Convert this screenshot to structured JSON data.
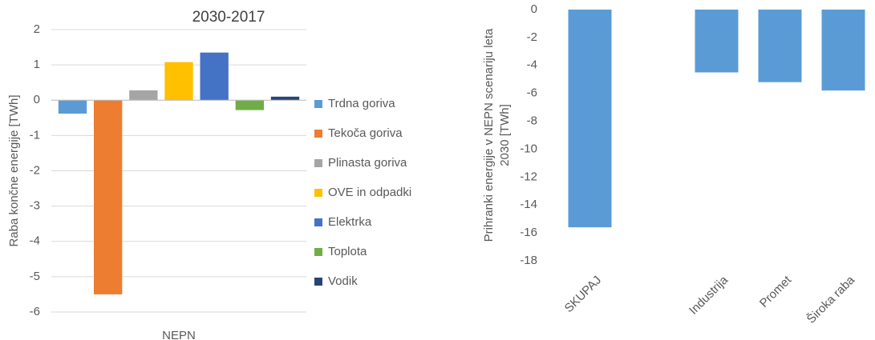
{
  "chart_data": [
    {
      "type": "bar",
      "title": "2030-2017",
      "ylabel": [
        "Raba končne energije [TWh]"
      ],
      "categories": [
        "NEPN"
      ],
      "series": [
        {
          "name": "Trdna goriva",
          "color": "#5b9bd5",
          "values": [
            -0.38
          ]
        },
        {
          "name": "Tekoča goriva",
          "color": "#ed7d31",
          "values": [
            -5.5
          ]
        },
        {
          "name": "Plinasta goriva",
          "color": "#a5a5a5",
          "values": [
            0.28
          ]
        },
        {
          "name": "OVE in odpadki",
          "color": "#ffc000",
          "values": [
            1.08
          ]
        },
        {
          "name": "Elektrka",
          "color": "#4472c4",
          "values": [
            1.35
          ]
        },
        {
          "name": "Toplota",
          "color": "#70ad47",
          "values": [
            -0.28
          ]
        },
        {
          "name": "Vodik",
          "color": "#264478",
          "values": [
            0.1
          ]
        }
      ],
      "ylim": [
        -6,
        2
      ],
      "yticks": [
        -6,
        -5,
        -4,
        -3,
        -2,
        -1,
        0,
        1,
        2
      ],
      "grid": true,
      "legend": "right"
    },
    {
      "type": "bar",
      "ylabel": [
        "Prihranki energije v NEPN scenariju leta",
        "2030 [TWh]"
      ],
      "categories": [
        "SKUPAJ",
        null,
        "Industrija",
        "Promet",
        "Široka raba"
      ],
      "values": [
        -15.6,
        null,
        -4.5,
        -5.2,
        -5.8
      ],
      "color": "#5b9bd5",
      "ylim": [
        -18,
        0
      ],
      "yticks": [
        -18,
        -16,
        -14,
        -12,
        -10,
        -8,
        -6,
        -4,
        -2,
        0
      ],
      "grid": false
    }
  ]
}
